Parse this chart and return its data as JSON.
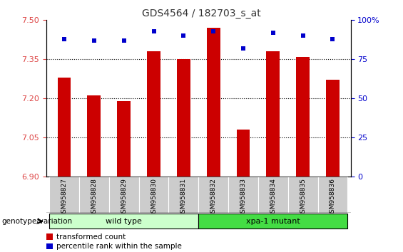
{
  "title": "GDS4564 / 182703_s_at",
  "samples": [
    "GSM958827",
    "GSM958828",
    "GSM958829",
    "GSM958830",
    "GSM958831",
    "GSM958832",
    "GSM958833",
    "GSM958834",
    "GSM958835",
    "GSM958836"
  ],
  "transformed_count": [
    7.28,
    7.21,
    7.19,
    7.38,
    7.35,
    7.47,
    7.08,
    7.38,
    7.36,
    7.27
  ],
  "percentile_rank": [
    88,
    87,
    87,
    93,
    90,
    93,
    82,
    92,
    90,
    88
  ],
  "ylim_left": [
    6.9,
    7.5
  ],
  "ylim_right": [
    0,
    100
  ],
  "yticks_left": [
    6.9,
    7.05,
    7.2,
    7.35,
    7.5
  ],
  "yticks_right": [
    0,
    25,
    50,
    75,
    100
  ],
  "bar_color": "#cc0000",
  "dot_color": "#0000cc",
  "bar_bottom": 6.9,
  "groups": [
    {
      "label": "wild type",
      "start": 0,
      "end": 5,
      "color": "#ccffcc"
    },
    {
      "label": "xpa-1 mutant",
      "start": 5,
      "end": 10,
      "color": "#44dd44"
    }
  ],
  "group_label": "genotype/variation",
  "legend_items": [
    {
      "label": "transformed count",
      "color": "#cc0000"
    },
    {
      "label": "percentile rank within the sample",
      "color": "#0000cc"
    }
  ],
  "title_color": "#333333",
  "left_tick_color": "#dd4444",
  "right_tick_color": "#0000cc",
  "grid_color": "#000000",
  "bg_color": "#ffffff",
  "plot_bg_color": "#ffffff",
  "sample_box_color": "#cccccc"
}
